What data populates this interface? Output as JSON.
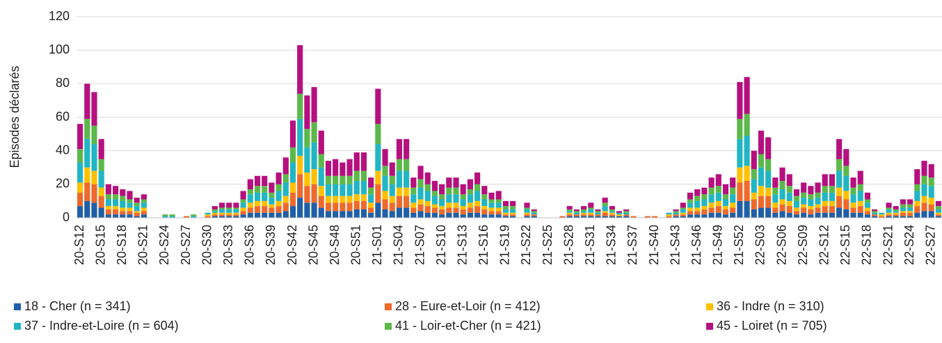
{
  "chart_data": {
    "type": "stacked_bar",
    "y_label": "Episodes déclarés",
    "ylim": [
      0,
      120
    ],
    "yticks": [
      0,
      20,
      40,
      60,
      80,
      100,
      120
    ],
    "grid": true,
    "legend": "bottom",
    "categories": [
      "20-S12",
      null,
      null,
      "20-S15",
      null,
      null,
      "20-S18",
      null,
      null,
      "20-S21",
      null,
      null,
      "20-S24",
      null,
      null,
      "20-S27",
      null,
      null,
      "20-S30",
      null,
      null,
      "20-S33",
      null,
      null,
      "20-S36",
      null,
      null,
      "20-S39",
      null,
      null,
      "20-S42",
      null,
      null,
      "20-S45",
      null,
      null,
      "20-S48",
      null,
      null,
      "20-S51",
      null,
      null,
      "21-S01",
      null,
      null,
      "21-S04",
      null,
      null,
      "21-S07",
      null,
      null,
      "21-S10",
      null,
      null,
      "21-S13",
      null,
      null,
      "21-S16",
      null,
      null,
      "21-S19",
      null,
      null,
      "21-S22",
      null,
      null,
      "21-S25",
      null,
      null,
      "21-S28",
      null,
      null,
      "21-S31",
      null,
      null,
      "21-S34",
      null,
      null,
      "21-S37",
      null,
      null,
      "21-S40",
      null,
      null,
      "21-S43",
      null,
      null,
      "21-S46",
      null,
      null,
      "21-S49",
      null,
      null,
      "21-S52",
      null,
      null,
      "22-S03",
      null,
      null,
      "22-S06",
      null,
      null,
      "22-S09",
      null,
      null,
      "22-S12",
      null,
      null,
      "22-S15",
      null,
      null,
      "22-S18",
      null,
      null,
      "22-S21",
      null,
      null,
      "22-S24",
      null,
      null,
      "22-S27",
      null
    ],
    "series": [
      {
        "name": "18 - Cher (n = 341)",
        "color": "#1f5fa8",
        "values": [
          7,
          10,
          9,
          6,
          2,
          2,
          2,
          2,
          1,
          2,
          0,
          0,
          0,
          0,
          0,
          0,
          0,
          0,
          0,
          1,
          1,
          1,
          1,
          2,
          3,
          3,
          3,
          3,
          3,
          4,
          7,
          12,
          9,
          9,
          6,
          4,
          4,
          4,
          4,
          5,
          5,
          3,
          9,
          5,
          4,
          6,
          6,
          3,
          4,
          3,
          3,
          2,
          3,
          3,
          2,
          3,
          3,
          2,
          2,
          2,
          1,
          1,
          0,
          1,
          1,
          0,
          0,
          0,
          0,
          1,
          1,
          1,
          1,
          1,
          1,
          1,
          1,
          1,
          0,
          0,
          0,
          0,
          0,
          0,
          1,
          1,
          2,
          2,
          2,
          3,
          3,
          2,
          3,
          10,
          10,
          5,
          6,
          6,
          3,
          4,
          3,
          2,
          3,
          2,
          3,
          3,
          3,
          6,
          5,
          3,
          3,
          2,
          1,
          0,
          1,
          1,
          1,
          1,
          3,
          4,
          4,
          1
        ]
      },
      {
        "name": "28 - Eure-et-Loir (n = 412)",
        "color": "#ee6a2c",
        "values": [
          8,
          11,
          11,
          7,
          3,
          3,
          2,
          2,
          2,
          2,
          0,
          0,
          0,
          0,
          0,
          1,
          0,
          0,
          1,
          1,
          1,
          1,
          1,
          2,
          3,
          4,
          4,
          3,
          4,
          5,
          8,
          14,
          10,
          11,
          7,
          5,
          5,
          5,
          5,
          5,
          5,
          3,
          11,
          6,
          5,
          7,
          7,
          3,
          4,
          4,
          3,
          3,
          3,
          3,
          3,
          3,
          4,
          3,
          2,
          2,
          1,
          1,
          0,
          1,
          1,
          0,
          0,
          0,
          1,
          1,
          1,
          1,
          1,
          1,
          2,
          1,
          0,
          1,
          1,
          0,
          1,
          1,
          0,
          1,
          1,
          1,
          2,
          2,
          3,
          3,
          4,
          3,
          3,
          11,
          12,
          6,
          7,
          7,
          3,
          4,
          4,
          2,
          3,
          3,
          3,
          4,
          4,
          7,
          6,
          3,
          4,
          2,
          1,
          1,
          1,
          1,
          2,
          2,
          4,
          5,
          4,
          1
        ]
      },
      {
        "name": "36 - Indre (n = 310)",
        "color": "#ffc000",
        "values": [
          6,
          9,
          8,
          5,
          2,
          2,
          2,
          2,
          1,
          2,
          0,
          0,
          0,
          0,
          0,
          0,
          0,
          0,
          1,
          1,
          1,
          1,
          1,
          2,
          3,
          3,
          3,
          2,
          3,
          4,
          6,
          11,
          8,
          9,
          6,
          4,
          4,
          4,
          4,
          4,
          4,
          3,
          8,
          5,
          4,
          5,
          5,
          3,
          3,
          3,
          2,
          2,
          3,
          3,
          2,
          3,
          3,
          2,
          2,
          2,
          1,
          1,
          0,
          1,
          0,
          0,
          0,
          0,
          0,
          1,
          0,
          1,
          1,
          0,
          1,
          1,
          1,
          0,
          0,
          0,
          0,
          0,
          0,
          1,
          0,
          1,
          2,
          2,
          2,
          3,
          3,
          2,
          3,
          9,
          9,
          4,
          6,
          5,
          3,
          3,
          3,
          2,
          2,
          2,
          2,
          3,
          3,
          5,
          5,
          3,
          3,
          2,
          0,
          1,
          1,
          1,
          1,
          1,
          3,
          4,
          4,
          1
        ]
      },
      {
        "name": "37 - Indre-et-Loire (n = 604)",
        "color": "#22b5c4",
        "values": [
          12,
          17,
          16,
          10,
          4,
          4,
          4,
          3,
          3,
          3,
          0,
          0,
          1,
          1,
          0,
          0,
          1,
          0,
          1,
          1,
          2,
          2,
          2,
          3,
          5,
          5,
          5,
          4,
          6,
          8,
          12,
          22,
          15,
          16,
          11,
          7,
          7,
          7,
          7,
          8,
          8,
          5,
          16,
          9,
          7,
          10,
          10,
          5,
          7,
          6,
          5,
          4,
          5,
          5,
          4,
          5,
          6,
          4,
          3,
          3,
          2,
          2,
          0,
          2,
          1,
          0,
          0,
          0,
          0,
          1,
          1,
          1,
          2,
          1,
          3,
          1,
          1,
          1,
          0,
          0,
          0,
          0,
          0,
          1,
          1,
          2,
          3,
          4,
          4,
          5,
          5,
          4,
          5,
          17,
          18,
          8,
          11,
          10,
          5,
          6,
          5,
          4,
          4,
          4,
          4,
          5,
          5,
          10,
          9,
          5,
          6,
          3,
          1,
          1,
          2,
          1,
          2,
          2,
          6,
          7,
          7,
          2
        ]
      },
      {
        "name": "41 - Loir-et-Cher (n = 421)",
        "color": "#5cb84a",
        "values": [
          8,
          12,
          11,
          7,
          3,
          3,
          3,
          2,
          2,
          2,
          0,
          0,
          1,
          1,
          0,
          0,
          1,
          0,
          0,
          1,
          1,
          1,
          1,
          2,
          3,
          4,
          4,
          3,
          4,
          5,
          9,
          15,
          11,
          12,
          8,
          5,
          5,
          5,
          5,
          6,
          6,
          4,
          12,
          6,
          5,
          7,
          7,
          4,
          5,
          4,
          3,
          3,
          4,
          4,
          3,
          3,
          4,
          3,
          2,
          2,
          2,
          2,
          0,
          1,
          1,
          0,
          0,
          0,
          0,
          1,
          1,
          1,
          1,
          1,
          2,
          1,
          0,
          1,
          0,
          0,
          0,
          0,
          0,
          0,
          1,
          1,
          2,
          3,
          3,
          4,
          4,
          3,
          4,
          12,
          13,
          6,
          8,
          7,
          4,
          5,
          4,
          3,
          3,
          3,
          3,
          4,
          4,
          7,
          6,
          4,
          4,
          2,
          1,
          0,
          1,
          1,
          2,
          2,
          4,
          5,
          5,
          2
        ]
      },
      {
        "name": "45 - Loiret (n = 705)",
        "color": "#b5107e",
        "values": [
          15,
          21,
          20,
          12,
          6,
          5,
          4,
          5,
          3,
          3,
          0,
          0,
          0,
          0,
          0,
          0,
          0,
          0,
          0,
          2,
          3,
          3,
          3,
          5,
          6,
          6,
          6,
          6,
          7,
          10,
          16,
          29,
          20,
          21,
          14,
          9,
          10,
          8,
          10,
          11,
          11,
          6,
          21,
          10,
          8,
          12,
          12,
          6,
          8,
          7,
          6,
          6,
          6,
          6,
          6,
          6,
          7,
          5,
          4,
          5,
          3,
          3,
          0,
          3,
          1,
          0,
          0,
          0,
          0,
          2,
          1,
          2,
          3,
          1,
          3,
          2,
          1,
          1,
          0,
          0,
          0,
          0,
          0,
          0,
          1,
          3,
          4,
          4,
          4,
          6,
          7,
          6,
          6,
          22,
          22,
          11,
          14,
          13,
          6,
          8,
          7,
          4,
          6,
          5,
          6,
          7,
          7,
          12,
          10,
          6,
          8,
          4,
          1,
          0,
          3,
          2,
          3,
          3,
          9,
          9,
          8,
          3
        ]
      }
    ]
  }
}
